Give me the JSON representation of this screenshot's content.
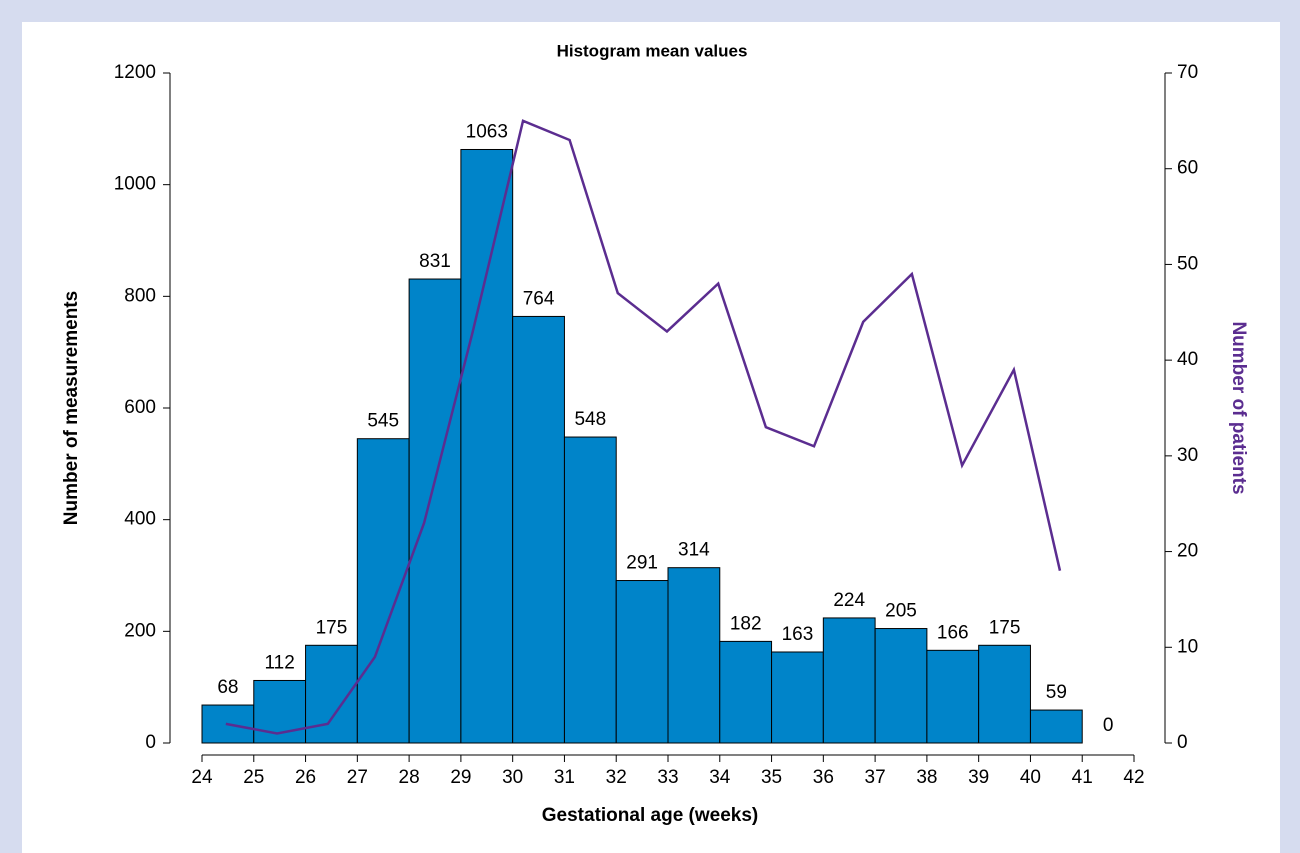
{
  "chart_data": {
    "type": "histogram",
    "title": "Histogram mean values",
    "xlabel": "Gestational age (weeks)",
    "ylabel": "Number of measurements",
    "y2label": "Number of patients",
    "bins": [
      24,
      25,
      26,
      27,
      28,
      29,
      30,
      31,
      32,
      33,
      34,
      35,
      36,
      37,
      38,
      39,
      40,
      41,
      42
    ],
    "values": [
      68,
      112,
      175,
      545,
      831,
      1063,
      764,
      548,
      291,
      314,
      182,
      163,
      224,
      205,
      166,
      175,
      59,
      0
    ],
    "color": "#0084c9",
    "line": {
      "type": "line",
      "axis": "y2",
      "color": "#5b2d90",
      "x": [
        24.46,
        25.45,
        26.43,
        27.34,
        28.29,
        29.23,
        30.2,
        31.1,
        32.03,
        32.98,
        33.97,
        34.89,
        35.82,
        36.77,
        37.71,
        38.68,
        39.68,
        40.57
      ],
      "values": [
        2,
        1,
        2,
        9,
        23,
        43,
        65,
        63,
        47,
        43,
        48,
        33,
        31,
        44,
        49,
        29,
        39,
        18
      ]
    },
    "xlim": [
      24,
      42
    ],
    "xticks": [
      24,
      25,
      26,
      27,
      28,
      29,
      30,
      31,
      32,
      33,
      34,
      35,
      36,
      37,
      38,
      39,
      40,
      41,
      42
    ],
    "ylim": [
      0,
      1200
    ],
    "yticks": [
      0,
      200,
      400,
      600,
      800,
      1000,
      1200
    ],
    "y2lim": [
      0,
      70
    ],
    "y2ticks": [
      0,
      10,
      20,
      30,
      40,
      50,
      60,
      70
    ]
  }
}
